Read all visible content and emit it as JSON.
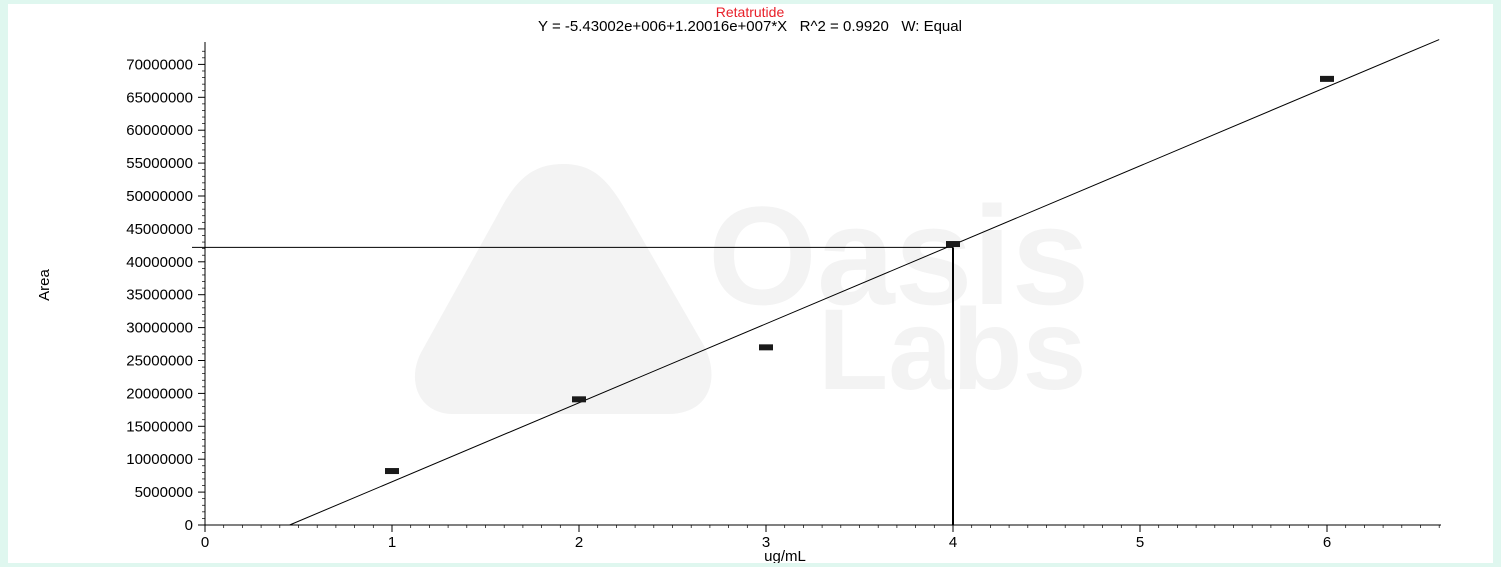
{
  "chart_data": {
    "type": "scatter",
    "title": "Retatrutide",
    "subtitle": "Y = -5.43002e+006+1.20016e+007*X   R^2 = 0.9920   W: Equal",
    "xlabel": "ug/mL",
    "ylabel": "Area",
    "xlim": [
      0,
      6.6
    ],
    "ylim": [
      0,
      74000000
    ],
    "xticks": [
      0,
      1,
      2,
      3,
      4,
      5,
      6
    ],
    "yticks": [
      0,
      5000000,
      10000000,
      15000000,
      20000000,
      25000000,
      30000000,
      35000000,
      40000000,
      45000000,
      50000000,
      55000000,
      60000000,
      65000000,
      70000000
    ],
    "xtick_labels": [
      "0",
      "1",
      "2",
      "3",
      "4",
      "5",
      "6"
    ],
    "ytick_labels": [
      "0",
      "5000000",
      "10000000",
      "15000000",
      "20000000",
      "25000000",
      "30000000",
      "35000000",
      "40000000",
      "45000000",
      "50000000",
      "55000000",
      "60000000",
      "65000000",
      "70000000"
    ],
    "series": [
      {
        "x": [
          1,
          2,
          3,
          4,
          6
        ],
        "y": [
          8200000,
          19100000,
          27000000,
          42700000,
          67800000
        ]
      }
    ],
    "fit_line": {
      "intercept": -5430020,
      "slope": 12001600
    },
    "marker": {
      "x": 4,
      "y": 42200000
    },
    "watermark": "Oasis Labs",
    "grid": false,
    "colors": {
      "title": "#e8202a",
      "data": "#1a1a1a",
      "line": "#000000",
      "watermark": "#f3f3f3"
    }
  }
}
